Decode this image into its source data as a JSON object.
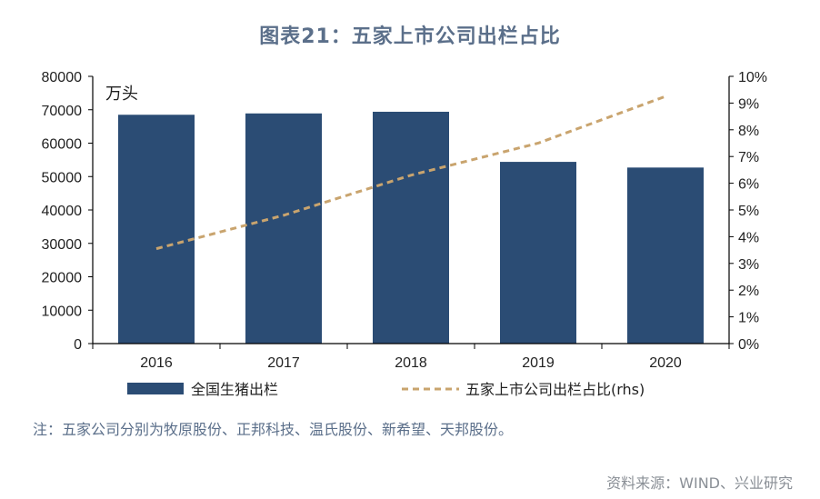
{
  "title": "图表21：五家上市公司出栏占比",
  "note": "注：五家公司分别为牧原股份、正邦科技、温氏股份、新希望、天邦股份。",
  "source": "资料来源：WIND、兴业研究",
  "colors": {
    "bar": "#2b4c74",
    "line": "#c9a46e",
    "text": "#222222"
  },
  "chart_data": {
    "type": "bar",
    "categories": [
      "2016",
      "2017",
      "2018",
      "2019",
      "2020"
    ],
    "left_unit": "万头",
    "series": [
      {
        "name": "全国生猪出栏",
        "type": "bar",
        "axis": "left",
        "values": [
          68500,
          68900,
          69400,
          54400,
          52700
        ]
      },
      {
        "name": "五家上市公司出栏占比(rhs)",
        "type": "line",
        "axis": "right",
        "style": "dashed",
        "values": [
          3.55,
          4.8,
          6.3,
          7.5,
          9.25
        ]
      }
    ],
    "ylim_left": [
      0,
      80000
    ],
    "yticks_left": [
      "0",
      "10000",
      "20000",
      "30000",
      "40000",
      "50000",
      "60000",
      "70000",
      "80000"
    ],
    "ylim_right": [
      0,
      10
    ],
    "yticks_right": [
      "0%",
      "1%",
      "2%",
      "3%",
      "4%",
      "5%",
      "6%",
      "7%",
      "8%",
      "9%",
      "10%"
    ],
    "grid": false,
    "legend_position": "bottom"
  }
}
